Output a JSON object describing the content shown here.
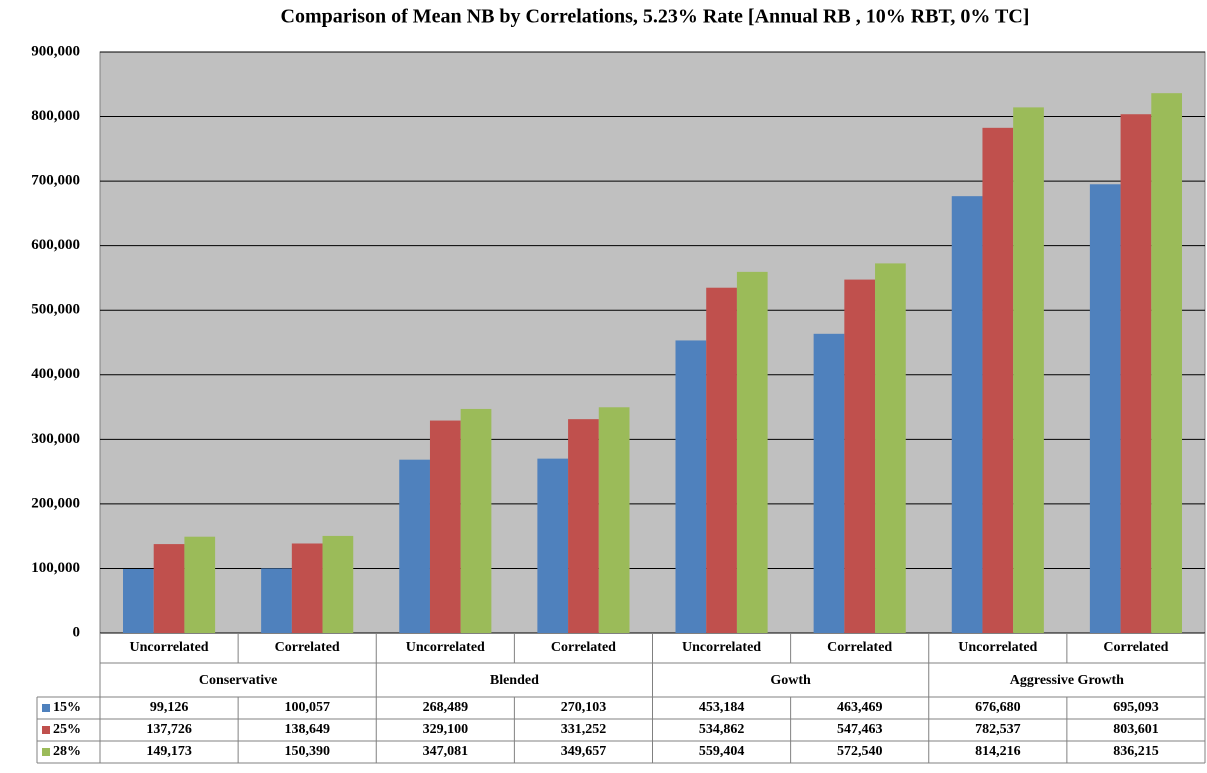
{
  "chart_data": {
    "type": "bar",
    "title": "Comparison of Mean NB by Correlations, 5.23% Rate [Annual RB , 10% RBT, 0% TC]",
    "categories": [
      "Uncorrelated",
      "Correlated",
      "Uncorrelated",
      "Correlated",
      "Uncorrelated",
      "Correlated",
      "Uncorrelated",
      "Correlated"
    ],
    "groups": [
      "Conservative",
      "Blended",
      "Gowth",
      "Aggressive Growth"
    ],
    "series": [
      {
        "name": "15%",
        "color": "#4f81bd",
        "values": [
          99126,
          100057,
          268489,
          270103,
          453184,
          463469,
          676680,
          695093
        ],
        "value_labels": [
          "99,126",
          "100,057",
          "268,489",
          "270,103",
          "453,184",
          "463,469",
          "676,680",
          "695,093"
        ]
      },
      {
        "name": "25%",
        "color": "#c0504d",
        "values": [
          137726,
          138649,
          329100,
          331252,
          534862,
          547463,
          782537,
          803601
        ],
        "value_labels": [
          "137,726",
          "138,649",
          "329,100",
          "331,252",
          "534,862",
          "547,463",
          "782,537",
          "803,601"
        ]
      },
      {
        "name": "28%",
        "color": "#9bbb59",
        "values": [
          149173,
          150390,
          347081,
          349657,
          559404,
          572540,
          814216,
          836215
        ],
        "value_labels": [
          "149,173",
          "150,390",
          "347,081",
          "349,657",
          "559,404",
          "572,540",
          "814,216",
          "836,215"
        ]
      }
    ],
    "ylim": [
      0,
      900000
    ],
    "yticks": [
      0,
      {
        "value": 100000,
        "label": "100,000"
      },
      {
        "value": 200000,
        "label": "200,000"
      },
      {
        "value": 300000,
        "label": "300,000"
      },
      {
        "value": 400000,
        "label": "400,000"
      },
      {
        "value": 500000,
        "label": "500,000"
      },
      {
        "value": 600000,
        "label": "600,000"
      },
      {
        "value": 700000,
        "label": "700,000"
      },
      {
        "value": 800000,
        "label": "800,000"
      },
      {
        "value": 900000,
        "label": "900,000"
      }
    ],
    "grid": true
  }
}
